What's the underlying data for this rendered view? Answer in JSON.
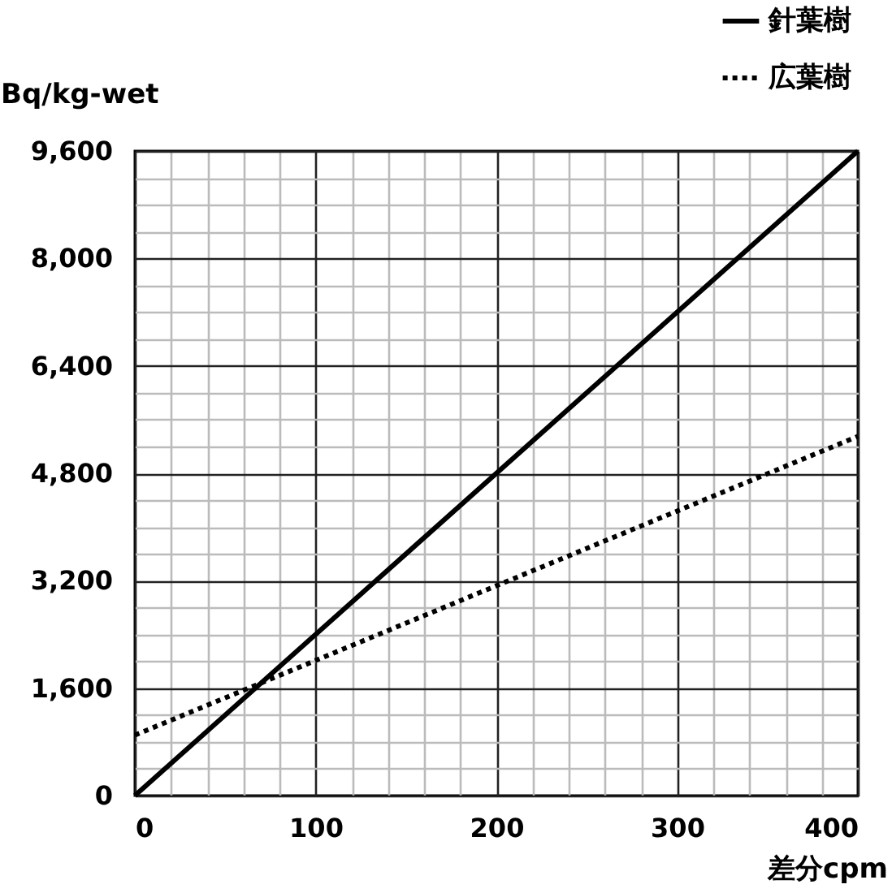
{
  "chart_data": {
    "type": "line",
    "xlabel": "差分cpm",
    "ylabel": "Bq/kg-wet",
    "x": [
      0,
      400
    ],
    "series": [
      {
        "name": "針葉樹",
        "color": "#000000",
        "line_style": "solid",
        "values": [
          0,
          9600
        ]
      },
      {
        "name": "広葉樹",
        "color": "#000000",
        "line_style": "dotted",
        "values": [
          900,
          5350
        ]
      }
    ],
    "xlim": [
      0,
      400
    ],
    "xticks": [
      0,
      {
        "value": 20,
        "label": null
      },
      {
        "value": 40,
        "label": null
      },
      {
        "value": 60,
        "label": null
      },
      {
        "value": 80,
        "label": null
      },
      100,
      {
        "value": 120,
        "label": null
      },
      {
        "value": 140,
        "label": null
      },
      {
        "value": 160,
        "label": null
      },
      {
        "value": 180,
        "label": null
      },
      200,
      {
        "value": 220,
        "label": null
      },
      {
        "value": 240,
        "label": null
      },
      {
        "value": 260,
        "label": null
      },
      {
        "value": 280,
        "label": null
      },
      300,
      {
        "value": 320,
        "label": null
      },
      {
        "value": 340,
        "label": null
      },
      {
        "value": 360,
        "label": null
      },
      {
        "value": 380,
        "label": null
      },
      400
    ],
    "ylim": [
      0,
      9600
    ],
    "yticks": [
      0,
      {
        "value": 400,
        "label": null
      },
      {
        "value": 800,
        "label": null
      },
      {
        "value": 1200,
        "label": null
      },
      {
        "value": 1600,
        "label": "1,600"
      },
      {
        "value": 2000,
        "label": null
      },
      {
        "value": 2400,
        "label": null
      },
      {
        "value": 2800,
        "label": null
      },
      {
        "value": 3200,
        "label": "3,200"
      },
      {
        "value": 3600,
        "label": null
      },
      {
        "value": 4000,
        "label": null
      },
      {
        "value": 4400,
        "label": null
      },
      {
        "value": 4800,
        "label": "4,800"
      },
      {
        "value": 5200,
        "label": null
      },
      {
        "value": 5600,
        "label": null
      },
      {
        "value": 6000,
        "label": null
      },
      {
        "value": 6400,
        "label": "6,400"
      },
      {
        "value": 6800,
        "label": null
      },
      {
        "value": 7200,
        "label": null
      },
      {
        "value": 7600,
        "label": null
      },
      {
        "value": 8000,
        "label": "8,000"
      },
      {
        "value": 8400,
        "label": null
      },
      {
        "value": 8800,
        "label": null
      },
      {
        "value": 9200,
        "label": null
      },
      {
        "value": 9600,
        "label": "9,600"
      }
    ],
    "grid": true,
    "legend": "top right",
    "marker": "none"
  }
}
